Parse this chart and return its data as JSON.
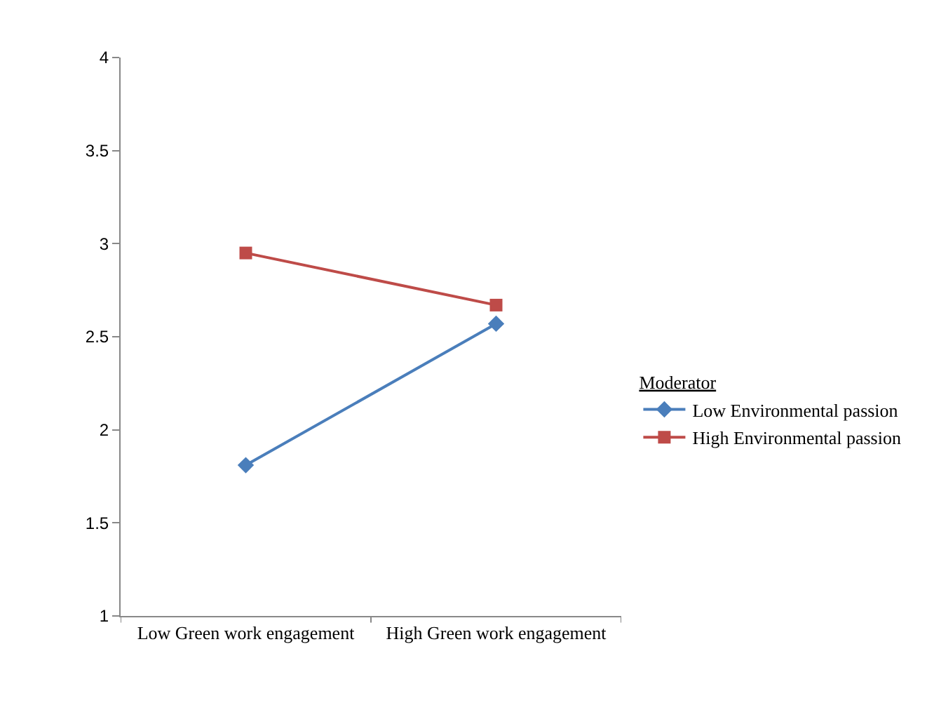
{
  "chart_data": {
    "type": "line",
    "categories": [
      "Low Green work engagement",
      "High Green work engagement"
    ],
    "series": [
      {
        "name": "Low Environmental passion",
        "color": "#4a7ebb",
        "values": [
          1.81,
          2.57
        ],
        "marker": "diamond"
      },
      {
        "name": "High Environmental passion",
        "color": "#be4b48",
        "values": [
          2.95,
          2.67
        ],
        "marker": "square"
      }
    ],
    "legend_title": "Moderator",
    "legend": "right",
    "ylim": [
      1,
      4
    ],
    "yticks": [
      1,
      1.5,
      2,
      2.5,
      3,
      3.5,
      4
    ]
  }
}
